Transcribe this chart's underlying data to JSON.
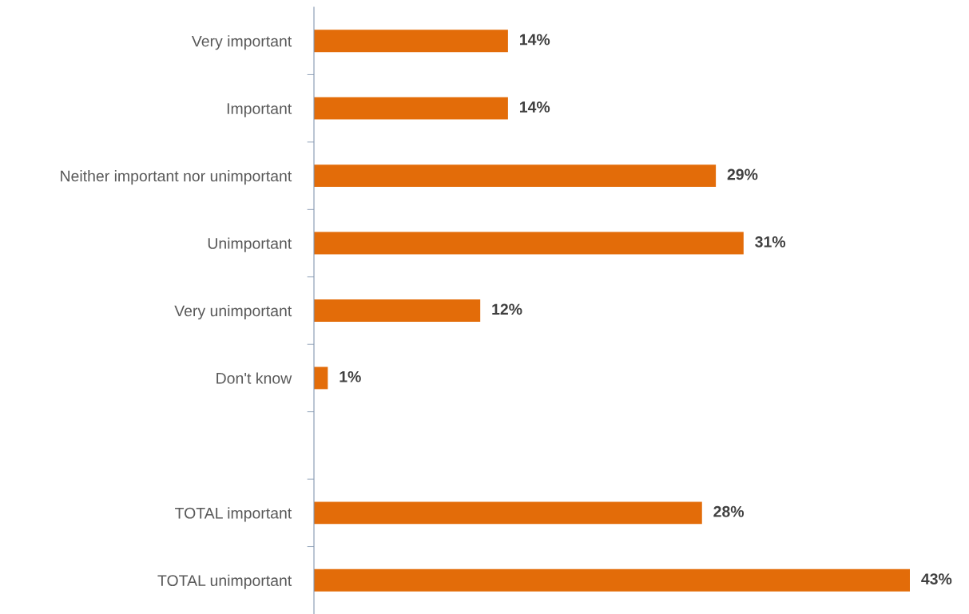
{
  "chart_data": {
    "type": "bar",
    "orientation": "horizontal",
    "categories": [
      "Very important",
      "Important",
      "Neither important nor unimportant",
      "Unimportant",
      "Very unimportant",
      "Don't know",
      null,
      "TOTAL important",
      "TOTAL unimportant"
    ],
    "values": [
      14,
      14,
      29,
      31,
      12,
      1,
      null,
      28,
      43
    ],
    "value_labels": [
      "14%",
      "14%",
      "29%",
      "31%",
      "12%",
      "1%",
      null,
      "28%",
      "43%"
    ],
    "color": "#e36c09",
    "tick_labels": "y",
    "grid": false,
    "legend": false
  }
}
